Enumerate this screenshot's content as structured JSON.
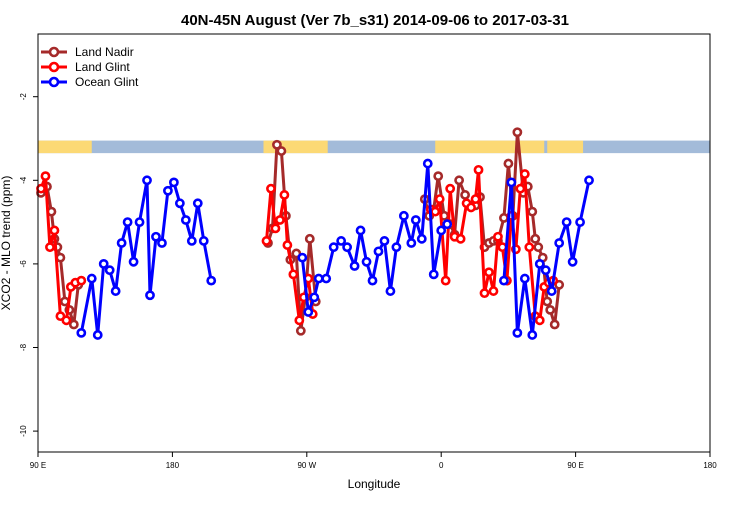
{
  "chart_data": {
    "type": "line",
    "title": "40N-45N August (Ver 7b_s31)   2014-09-06 to 2017-03-31",
    "xlabel": "Longitude",
    "ylabel": "XCO2 - MLO trend (ppm)",
    "xlim": [
      -90,
      360
    ],
    "ylim": [
      -10.5,
      -0.5
    ],
    "x_ticks": [
      {
        "value": -90,
        "label": "90 E"
      },
      {
        "value": 0,
        "label": "180"
      },
      {
        "value": 90,
        "label": "90 W"
      },
      {
        "value": 180,
        "label": "0"
      },
      {
        "value": 270,
        "label": "90 E"
      },
      {
        "value": 360,
        "label": "180"
      }
    ],
    "y_ticks": [
      {
        "value": -2,
        "label": "-2"
      },
      {
        "value": -4,
        "label": "-4"
      },
      {
        "value": -6,
        "label": "-6"
      },
      {
        "value": -8,
        "label": "-8"
      },
      {
        "value": -10,
        "label": "-10"
      }
    ],
    "grid": false,
    "legend_position": "top-left",
    "land_mask_strip": {
      "y_range": [
        -3.35,
        -3.05
      ],
      "ocean_color": "#a3bbd9",
      "land_color": "#fcd975",
      "land_segments": [
        [
          -90,
          -54
        ],
        [
          61,
          104
        ],
        [
          176,
          249
        ],
        [
          251,
          275
        ]
      ]
    },
    "series": [
      {
        "name": "Land Nadir",
        "color": "#a52a2a",
        "points": [
          [
            -88,
            -4.3
          ],
          [
            -84,
            -4.15
          ],
          [
            -81,
            -4.75
          ],
          [
            -79,
            -5.4
          ],
          [
            -77,
            -5.6
          ],
          [
            -75,
            -5.85
          ],
          [
            -72,
            -6.9
          ],
          [
            -69,
            -7.1
          ],
          [
            -66,
            -7.45
          ],
          [
            -63,
            -6.5
          ],
          [
            64,
            -5.5
          ],
          [
            67,
            -5.15
          ],
          [
            70,
            -3.15
          ],
          [
            73,
            -3.3
          ],
          [
            76,
            -4.85
          ],
          [
            79,
            -5.9
          ],
          [
            83,
            -5.75
          ],
          [
            86,
            -7.6
          ],
          [
            89,
            -6.8
          ],
          [
            92,
            -5.4
          ],
          [
            96,
            -6.9
          ],
          [
            169,
            -4.45
          ],
          [
            172,
            -4.85
          ],
          [
            175,
            -4.7
          ],
          [
            178,
            -3.9
          ],
          [
            182,
            -4.85
          ],
          [
            186,
            -5.05
          ],
          [
            189,
            -5.3
          ],
          [
            192,
            -4.0
          ],
          [
            196,
            -4.35
          ],
          [
            199,
            -4.6
          ],
          [
            203,
            -4.6
          ],
          [
            206,
            -4.4
          ],
          [
            209,
            -5.6
          ],
          [
            212,
            -5.5
          ],
          [
            215,
            -5.45
          ],
          [
            218,
            -5.45
          ],
          [
            222,
            -4.9
          ],
          [
            225,
            -3.6
          ],
          [
            228,
            -4.85
          ],
          [
            231,
            -2.85
          ],
          [
            235,
            -4.3
          ],
          [
            238,
            -4.15
          ],
          [
            241,
            -4.75
          ],
          [
            243,
            -5.4
          ],
          [
            245,
            -5.6
          ],
          [
            248,
            -5.85
          ],
          [
            251,
            -6.9
          ],
          [
            253,
            -7.1
          ],
          [
            256,
            -7.45
          ],
          [
            259,
            -6.5
          ]
        ]
      },
      {
        "name": "Land Glint",
        "color": "#ff0000",
        "points": [
          [
            -88,
            -4.2
          ],
          [
            -85,
            -3.9
          ],
          [
            -82,
            -5.6
          ],
          [
            -79,
            -5.2
          ],
          [
            -75,
            -7.25
          ],
          [
            -71,
            -7.35
          ],
          [
            -68,
            -6.55
          ],
          [
            -65,
            -6.45
          ],
          [
            -61,
            -6.4
          ],
          [
            63,
            -5.45
          ],
          [
            66,
            -4.2
          ],
          [
            69,
            -5.15
          ],
          [
            72,
            -4.95
          ],
          [
            75,
            -4.35
          ],
          [
            77,
            -5.55
          ],
          [
            81,
            -6.25
          ],
          [
            85,
            -7.35
          ],
          [
            88,
            -6.8
          ],
          [
            91,
            -6.35
          ],
          [
            94,
            -7.2
          ],
          [
            173,
            -4.7
          ],
          [
            176,
            -4.75
          ],
          [
            179,
            -4.45
          ],
          [
            183,
            -6.4
          ],
          [
            186,
            -4.2
          ],
          [
            189,
            -5.35
          ],
          [
            193,
            -5.4
          ],
          [
            197,
            -4.55
          ],
          [
            200,
            -4.65
          ],
          [
            203,
            -4.45
          ],
          [
            205,
            -3.75
          ],
          [
            209,
            -6.7
          ],
          [
            212,
            -6.2
          ],
          [
            215,
            -6.65
          ],
          [
            218,
            -5.35
          ],
          [
            221,
            -5.6
          ],
          [
            224,
            -6.4
          ],
          [
            227,
            -4.85
          ],
          [
            230,
            -5.65
          ],
          [
            233,
            -4.2
          ],
          [
            236,
            -3.85
          ],
          [
            239,
            -5.6
          ],
          [
            243,
            -7.25
          ],
          [
            246,
            -7.35
          ],
          [
            249,
            -6.55
          ],
          [
            252,
            -6.45
          ],
          [
            255,
            -6.4
          ]
        ]
      },
      {
        "name": "Ocean Glint",
        "color": "#0000ff",
        "points": [
          [
            -61,
            -7.65
          ],
          [
            -54,
            -6.35
          ],
          [
            -50,
            -7.7
          ],
          [
            -46,
            -6.0
          ],
          [
            -42,
            -6.15
          ],
          [
            -38,
            -6.65
          ],
          [
            -34,
            -5.5
          ],
          [
            -30,
            -5.0
          ],
          [
            -26,
            -5.95
          ],
          [
            -22,
            -5.0
          ],
          [
            -17,
            -4.0
          ],
          [
            -15,
            -6.75
          ],
          [
            -11,
            -5.35
          ],
          [
            -7,
            -5.5
          ],
          [
            -3,
            -4.25
          ],
          [
            1,
            -4.05
          ],
          [
            5,
            -4.55
          ],
          [
            9,
            -4.95
          ],
          [
            13,
            -5.45
          ],
          [
            17,
            -4.55
          ],
          [
            21,
            -5.45
          ],
          [
            26,
            -6.4
          ],
          [
            87,
            -5.85
          ],
          [
            91,
            -7.15
          ],
          [
            95,
            -6.8
          ],
          [
            98,
            -6.35
          ],
          [
            103,
            -6.35
          ],
          [
            108,
            -5.6
          ],
          [
            113,
            -5.45
          ],
          [
            117,
            -5.6
          ],
          [
            122,
            -6.05
          ],
          [
            126,
            -5.2
          ],
          [
            130,
            -5.95
          ],
          [
            134,
            -6.4
          ],
          [
            138,
            -5.7
          ],
          [
            142,
            -5.45
          ],
          [
            146,
            -6.65
          ],
          [
            150,
            -5.6
          ],
          [
            155,
            -4.85
          ],
          [
            160,
            -5.5
          ],
          [
            163,
            -4.95
          ],
          [
            167,
            -5.4
          ],
          [
            171,
            -3.6
          ],
          [
            175,
            -6.25
          ],
          [
            180,
            -5.2
          ],
          [
            184,
            -5.05
          ],
          [
            222,
            -6.4
          ],
          [
            227,
            -4.05
          ],
          [
            231,
            -7.65
          ],
          [
            236,
            -6.35
          ],
          [
            241,
            -7.7
          ],
          [
            246,
            -6.0
          ],
          [
            250,
            -6.15
          ],
          [
            254,
            -6.65
          ],
          [
            259,
            -5.5
          ],
          [
            264,
            -5.0
          ],
          [
            268,
            -5.95
          ],
          [
            273,
            -5.0
          ],
          [
            279,
            -4.0
          ]
        ]
      }
    ]
  }
}
